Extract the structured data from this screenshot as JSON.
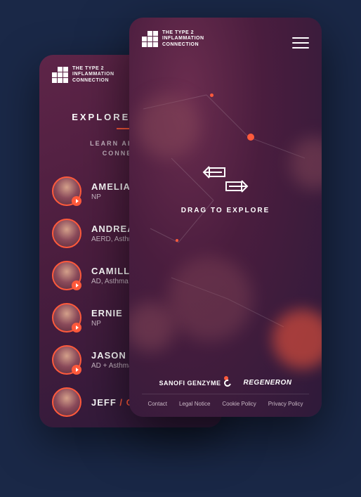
{
  "brand": {
    "line1": "THE TYPE 2",
    "line2": "INFLAMMATION",
    "line3": "CONNECTION"
  },
  "colors": {
    "accent": "#ff5a3c",
    "bg_outer": "#1a2847",
    "phone_gradient_start": "#6b2d4f",
    "phone_gradient_end": "#2e1a3a",
    "text_muted": "#c9b8c5"
  },
  "back": {
    "title": "EXPLORE STORIES",
    "subtitle_line1": "LEARN ABOUT THE",
    "subtitle_line2": "CONNECTION",
    "people": [
      {
        "name": "AMELIA",
        "desc": "NP",
        "has_play": true
      },
      {
        "name": "ANDREA",
        "desc": "AERD, Asthma",
        "has_play": false
      },
      {
        "name": "CAMILLE",
        "desc": "AD, Asthma",
        "has_play": true
      },
      {
        "name": "ERNIE",
        "desc": "NP",
        "has_play": true
      },
      {
        "name": "JASON",
        "desc": "AD + Asthma",
        "has_play": true
      },
      {
        "name": "JEFF",
        "desc": "",
        "role_suffix": "/ C…",
        "has_play": false
      }
    ]
  },
  "front": {
    "drag_label": "DRAG TO EXPLORE",
    "sponsors": {
      "sanofi": "SANOFI GENZYME",
      "regeneron": "REGENERON"
    },
    "links": [
      "Contact",
      "Legal Notice",
      "Cookie Policy",
      "Privacy Policy"
    ]
  }
}
